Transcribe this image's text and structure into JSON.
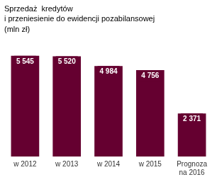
{
  "chart_data": {
    "type": "bar",
    "title": "Sprzedaż  kredytów\ni przeniesienie do ewidencji pozabilansowej\n(mln zł)",
    "categories": [
      "w 2012",
      "w 2013",
      "w 2014",
      "w 2015",
      "Prognoza\nna 2016"
    ],
    "values": [
      5545,
      5520,
      4984,
      4756,
      2371
    ],
    "value_labels": [
      "5 545",
      "5 520",
      "4 984",
      "4 756",
      "2 371"
    ],
    "color": "#650030",
    "ylim": [
      0,
      6400
    ],
    "grid": false,
    "data_labels": true,
    "tick_labels": "x"
  }
}
